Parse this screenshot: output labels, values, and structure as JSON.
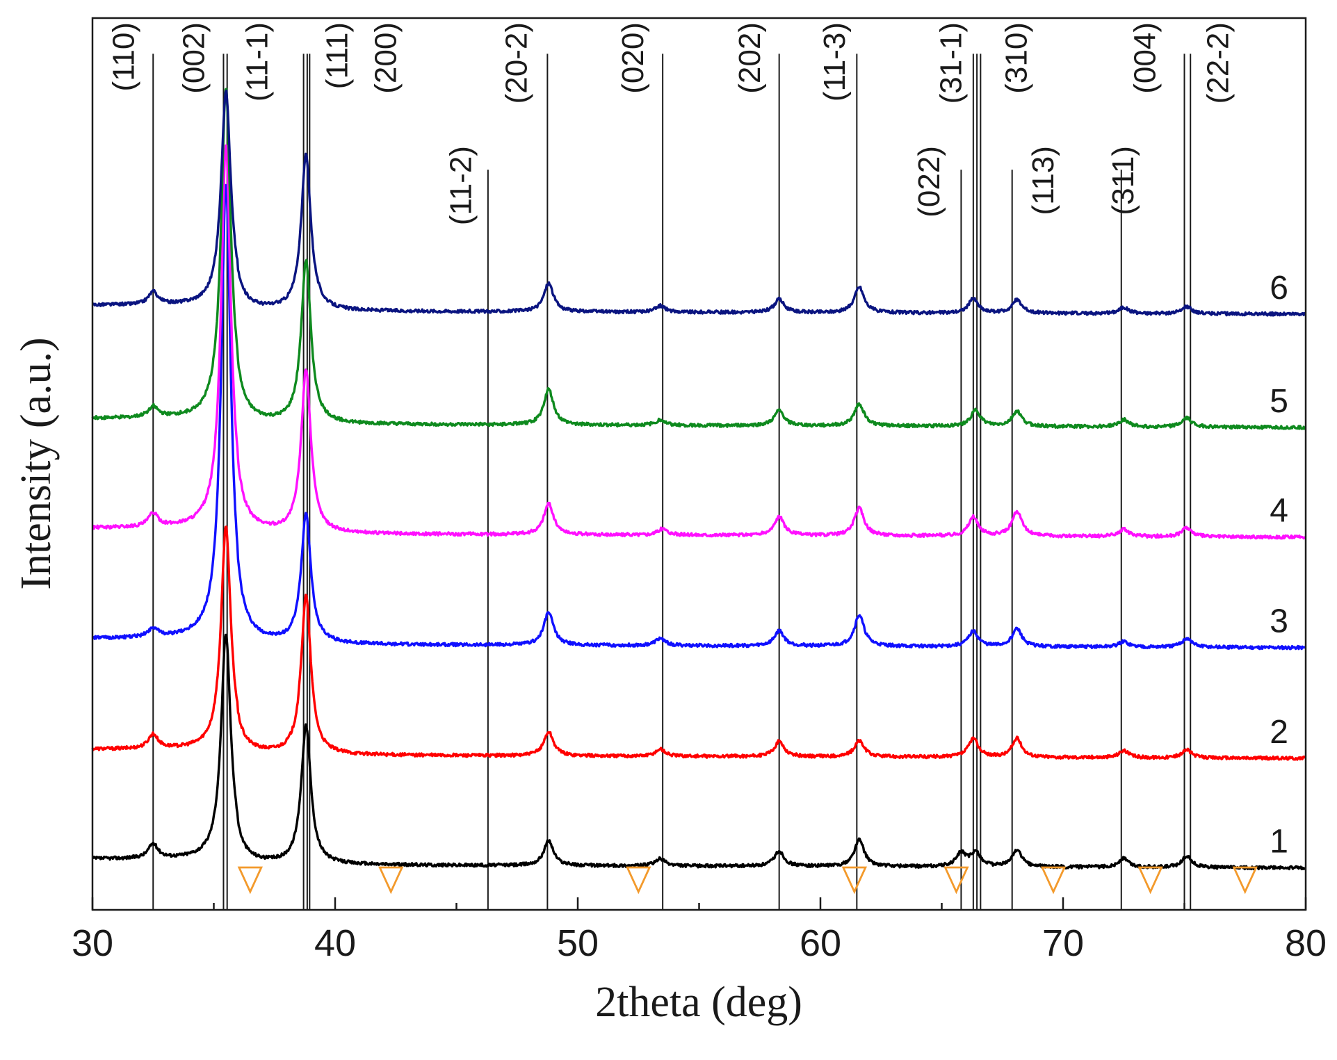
{
  "chart_data": {
    "type": "line",
    "title": "",
    "xlabel": "2theta (deg)",
    "ylabel": "Intensity (a.u.)",
    "xlim": [
      30,
      80
    ],
    "xticks": [
      "30",
      "40",
      "50",
      "60",
      "70",
      "80"
    ],
    "reference_lines": [
      {
        "label": "(110)",
        "x": 32.5,
        "top": 0.96
      },
      {
        "label": "(002)",
        "x": 35.4,
        "top": 0.96
      },
      {
        "label": "(002)",
        "x": 35.55,
        "top": 0.96
      },
      {
        "label": "(11-1)",
        "x": 38.7,
        "top": 0.96
      },
      {
        "label": "(11-1)",
        "x": 38.85,
        "top": 0.96
      },
      {
        "label": "(111)",
        "x": 38.95,
        "top": 0.96
      },
      {
        "label": "(11-2)",
        "x": 46.3,
        "top": 0.83
      },
      {
        "label": "(20-2)",
        "x": 48.75,
        "top": 0.96
      },
      {
        "label": "(020)",
        "x": 53.5,
        "top": 0.96
      },
      {
        "label": "(202)",
        "x": 58.3,
        "top": 0.96
      },
      {
        "label": "(11-3)",
        "x": 61.5,
        "top": 0.96
      },
      {
        "label": "(022)",
        "x": 65.8,
        "top": 0.83
      },
      {
        "label": "(31-1)",
        "x": 66.3,
        "top": 0.96
      },
      {
        "label": "(31-1)",
        "x": 66.45,
        "top": 0.96
      },
      {
        "label": "(31-1)",
        "x": 66.6,
        "top": 0.96
      },
      {
        "label": "(310)",
        "x": 67.9,
        "top": 0.83
      },
      {
        "label": "(311)",
        "x": 72.4,
        "top": 0.83
      },
      {
        "label": "(004)",
        "x": 75.0,
        "top": 0.96
      },
      {
        "label": "(22-2)",
        "x": 75.25,
        "top": 0.96
      }
    ],
    "peak_labels": [
      {
        "text": "(110)",
        "x": 31.7,
        "level": "high"
      },
      {
        "text": "(002)",
        "x": 34.6,
        "level": "high"
      },
      {
        "text": "(11-1)",
        "x": 37.2,
        "level": "high"
      },
      {
        "text": "(111)",
        "x": 40.5,
        "level": "high"
      },
      {
        "text": "(200)",
        "x": 42.5,
        "level": "high"
      },
      {
        "text": "(11-2)",
        "x": 45.6,
        "level": "low"
      },
      {
        "text": "(20-2)",
        "x": 47.9,
        "level": "high"
      },
      {
        "text": "(020)",
        "x": 52.7,
        "level": "high"
      },
      {
        "text": "(202)",
        "x": 57.5,
        "level": "high"
      },
      {
        "text": "(11-3)",
        "x": 61.0,
        "level": "high"
      },
      {
        "text": "(022)",
        "x": 64.9,
        "level": "low"
      },
      {
        "text": "(31-1)",
        "x": 65.8,
        "level": "high"
      },
      {
        "text": "(310)",
        "x": 68.5,
        "level": "high"
      },
      {
        "text": "(113)",
        "x": 69.6,
        "level": "low"
      },
      {
        "text": "(311)",
        "x": 72.9,
        "level": "low"
      },
      {
        "text": "(004)",
        "x": 73.8,
        "level": "high"
      },
      {
        "text": "(22-2)",
        "x": 76.8,
        "level": "high"
      }
    ],
    "markers": {
      "color": "#f39a2c",
      "x": [
        36.5,
        42.3,
        52.5,
        61.4,
        65.6,
        69.6,
        73.6,
        77.5
      ]
    },
    "series": [
      {
        "name": "1",
        "color": "#000000",
        "baseline": 0.051,
        "peaks": [
          [
            32.5,
            0.016
          ],
          [
            35.5,
            0.252
          ],
          [
            38.8,
            0.155
          ],
          [
            48.8,
            0.028
          ],
          [
            53.4,
            0.008
          ],
          [
            58.3,
            0.017
          ],
          [
            61.6,
            0.03
          ],
          [
            65.8,
            0.015
          ],
          [
            66.4,
            0.016
          ],
          [
            68.1,
            0.019
          ],
          [
            72.5,
            0.01
          ],
          [
            75.1,
            0.013
          ]
        ]
      },
      {
        "name": "2",
        "color": "#ff0000",
        "baseline": 0.174,
        "peaks": [
          [
            32.5,
            0.016
          ],
          [
            35.5,
            0.25
          ],
          [
            38.8,
            0.178
          ],
          [
            48.8,
            0.027
          ],
          [
            53.4,
            0.008
          ],
          [
            58.3,
            0.017
          ],
          [
            61.6,
            0.018
          ],
          [
            66.3,
            0.021
          ],
          [
            68.1,
            0.021
          ],
          [
            72.5,
            0.008
          ],
          [
            75.1,
            0.009
          ]
        ]
      },
      {
        "name": "3",
        "color": "#1010ff",
        "baseline": 0.298,
        "peaks": [
          [
            32.5,
            0.01
          ],
          [
            35.5,
            0.51
          ],
          [
            38.8,
            0.145
          ],
          [
            48.8,
            0.037
          ],
          [
            53.4,
            0.008
          ],
          [
            58.3,
            0.017
          ],
          [
            61.6,
            0.035
          ],
          [
            66.3,
            0.017
          ],
          [
            68.1,
            0.02
          ],
          [
            72.5,
            0.006
          ],
          [
            75.1,
            0.01
          ]
        ]
      },
      {
        "name": "4",
        "color": "#ff10ff",
        "baseline": 0.422,
        "peaks": [
          [
            32.5,
            0.015
          ],
          [
            35.5,
            0.43
          ],
          [
            38.8,
            0.183
          ],
          [
            48.8,
            0.035
          ],
          [
            53.5,
            0.007
          ],
          [
            58.3,
            0.021
          ],
          [
            61.6,
            0.031
          ],
          [
            66.3,
            0.021
          ],
          [
            68.1,
            0.028
          ],
          [
            72.5,
            0.008
          ],
          [
            75.1,
            0.01
          ]
        ]
      },
      {
        "name": "5",
        "color": "#0e8a1e",
        "baseline": 0.545,
        "peaks": [
          [
            32.5,
            0.012
          ],
          [
            35.5,
            0.37
          ],
          [
            38.8,
            0.182
          ],
          [
            48.8,
            0.04
          ],
          [
            53.4,
            0.006
          ],
          [
            58.3,
            0.017
          ],
          [
            61.6,
            0.025
          ],
          [
            66.4,
            0.018
          ],
          [
            68.1,
            0.017
          ],
          [
            72.5,
            0.008
          ],
          [
            75.1,
            0.01
          ]
        ]
      },
      {
        "name": "6",
        "color": "#0a1480",
        "baseline": 0.672,
        "peaks": [
          [
            32.5,
            0.014
          ],
          [
            35.5,
            0.24
          ],
          [
            38.8,
            0.174
          ],
          [
            48.8,
            0.032
          ],
          [
            53.4,
            0.007
          ],
          [
            58.3,
            0.015
          ],
          [
            61.6,
            0.029
          ],
          [
            66.3,
            0.016
          ],
          [
            68.1,
            0.015
          ],
          [
            72.5,
            0.007
          ],
          [
            75.1,
            0.008
          ]
        ]
      }
    ]
  }
}
